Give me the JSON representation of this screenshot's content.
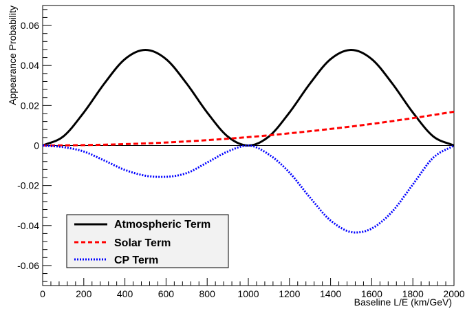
{
  "chart_data": {
    "type": "line",
    "xlabel": "Baseline L/E (km/GeV)",
    "ylabel": "Appearance Probability",
    "xlim": [
      0,
      2000
    ],
    "ylim": [
      -0.07,
      0.07
    ],
    "x_ticks": [
      0,
      200,
      400,
      600,
      800,
      1000,
      1200,
      1400,
      1600,
      1800,
      2000
    ],
    "x_tick_labels": [
      "0",
      "200",
      "400",
      "600",
      "800",
      "1000",
      "1200",
      "1400",
      "1600",
      "1800",
      "2000"
    ],
    "y_ticks": [
      -0.06,
      -0.04,
      -0.02,
      0,
      0.02,
      0.04,
      0.06
    ],
    "y_tick_labels": [
      "-0.06",
      "-0.04",
      "-0.02",
      "0",
      "0.02",
      "0.04",
      "0.06"
    ],
    "zero_line": true,
    "grid": false,
    "legend_position": "bottom-left",
    "series": [
      {
        "name": "Atmospheric Term",
        "color": "#000000",
        "style": "solid",
        "x": [
          0,
          100,
          200,
          300,
          400,
          500,
          600,
          700,
          800,
          900,
          1000,
          1100,
          1200,
          1300,
          1400,
          1500,
          1600,
          1700,
          1800,
          1900,
          2000
        ],
        "y": [
          0,
          0.0045,
          0.0165,
          0.031,
          0.0432,
          0.0478,
          0.0432,
          0.031,
          0.0165,
          0.0045,
          0,
          0.0045,
          0.0165,
          0.031,
          0.0432,
          0.0478,
          0.0432,
          0.031,
          0.0165,
          0.0045,
          0
        ]
      },
      {
        "name": "Solar Term",
        "color": "#ff0000",
        "style": "dashed",
        "x": [
          0,
          200,
          400,
          600,
          800,
          1000,
          1200,
          1400,
          1600,
          1800,
          2000
        ],
        "y": [
          0,
          0.0002,
          0.0007,
          0.0015,
          0.0027,
          0.0042,
          0.0061,
          0.0083,
          0.0108,
          0.0137,
          0.0169
        ]
      },
      {
        "name": "CP Term",
        "color": "#0000ff",
        "style": "dotted",
        "x": [
          0,
          100,
          200,
          300,
          400,
          500,
          580,
          700,
          800,
          900,
          1000,
          1100,
          1200,
          1300,
          1400,
          1520,
          1600,
          1700,
          1800,
          1900,
          2000
        ],
        "y": [
          0,
          -0.0008,
          -0.003,
          -0.0075,
          -0.0122,
          -0.0151,
          -0.0157,
          -0.0138,
          -0.0085,
          -0.003,
          0,
          -0.0045,
          -0.0135,
          -0.026,
          -0.0375,
          -0.0435,
          -0.0415,
          -0.033,
          -0.0195,
          -0.006,
          0
        ]
      }
    ]
  }
}
